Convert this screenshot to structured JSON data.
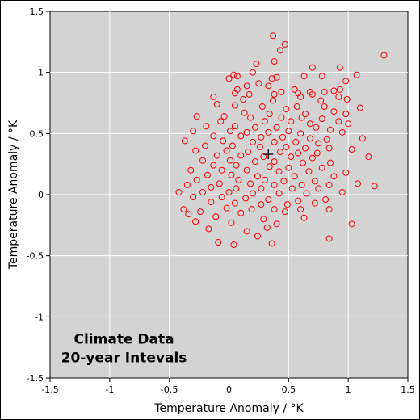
{
  "chart_data": {
    "type": "scatter",
    "title": "",
    "xlabel": "Temperature Anomaly / °K",
    "ylabel": "Temperature Anomaly / °K",
    "xlim": [
      -1.5,
      1.5
    ],
    "ylim": [
      -1.5,
      1.5
    ],
    "xticks": [
      -1.5,
      -1,
      -0.5,
      0,
      0.5,
      1,
      1.5
    ],
    "yticks": [
      -1.5,
      -1,
      -0.5,
      0,
      0.5,
      1,
      1.5
    ],
    "xtick_labels": [
      "-1.5",
      "-1",
      "-0.5",
      "0",
      "0.5",
      "1",
      "1.5"
    ],
    "ytick_labels": [
      "-1.5",
      "-1",
      "-0.5",
      "0",
      "0.5",
      "1",
      "1.5"
    ],
    "grid": true,
    "annotation": [
      "Climate Data",
      "20-year Intevals"
    ],
    "center_marker": {
      "x": 0.33,
      "y": 0.33,
      "symbol": "plus"
    },
    "colors": {
      "background": "#d3d3d3",
      "grid": "#ffffff",
      "marker": "#ff0000",
      "center": "#000000"
    },
    "series": [
      {
        "marker": "open-circle",
        "points": [
          [
            0.37,
            1.3
          ],
          [
            0.47,
            1.23
          ],
          [
            1.3,
            1.14
          ],
          [
            0.43,
            1.18
          ],
          [
            0.38,
            1.09
          ],
          [
            0.23,
            1.07
          ],
          [
            0.7,
            1.04
          ],
          [
            0.93,
            1.04
          ],
          [
            0.2,
            1.0
          ],
          [
            0.04,
            0.98
          ],
          [
            0.07,
            0.97
          ],
          [
            0.63,
            0.97
          ],
          [
            0.78,
            0.97
          ],
          [
            1.07,
            0.98
          ],
          [
            0.4,
            0.96
          ],
          [
            0.36,
            0.95
          ],
          [
            0.0,
            0.95
          ],
          [
            0.98,
            0.93
          ],
          [
            0.25,
            0.91
          ],
          [
            0.33,
            0.89
          ],
          [
            0.15,
            0.89
          ],
          [
            0.07,
            0.86
          ],
          [
            0.93,
            0.86
          ],
          [
            0.55,
            0.86
          ],
          [
            0.68,
            0.84
          ],
          [
            0.8,
            0.84
          ],
          [
            0.88,
            0.85
          ],
          [
            0.44,
            0.84
          ],
          [
            0.58,
            0.83
          ],
          [
            0.7,
            0.82
          ],
          [
            0.92,
            0.8
          ],
          [
            0.6,
            0.8
          ],
          [
            0.38,
            0.82
          ],
          [
            0.17,
            0.82
          ],
          [
            0.05,
            0.83
          ],
          [
            -0.13,
            0.8
          ],
          [
            0.12,
            0.78
          ],
          [
            0.37,
            0.77
          ],
          [
            0.77,
            0.77
          ],
          [
            0.99,
            0.78
          ],
          [
            -0.1,
            0.74
          ],
          [
            0.05,
            0.73
          ],
          [
            0.28,
            0.72
          ],
          [
            0.57,
            0.72
          ],
          [
            0.8,
            0.72
          ],
          [
            1.1,
            0.71
          ],
          [
            0.48,
            0.7
          ],
          [
            0.13,
            0.67
          ],
          [
            0.34,
            0.66
          ],
          [
            0.64,
            0.66
          ],
          [
            0.88,
            0.68
          ],
          [
            0.98,
            0.66
          ],
          [
            -0.27,
            0.64
          ],
          [
            -0.04,
            0.64
          ],
          [
            0.18,
            0.63
          ],
          [
            0.44,
            0.63
          ],
          [
            0.61,
            0.63
          ],
          [
            0.78,
            0.62
          ],
          [
            -0.07,
            0.6
          ],
          [
            0.3,
            0.6
          ],
          [
            0.52,
            0.6
          ],
          [
            0.68,
            0.58
          ],
          [
            0.92,
            0.6
          ],
          [
            1.0,
            0.58
          ],
          [
            -0.19,
            0.56
          ],
          [
            0.05,
            0.56
          ],
          [
            0.22,
            0.55
          ],
          [
            0.4,
            0.55
          ],
          [
            0.73,
            0.55
          ],
          [
            0.85,
            0.53
          ],
          [
            0.95,
            0.51
          ],
          [
            -0.3,
            0.52
          ],
          [
            0.01,
            0.52
          ],
          [
            0.15,
            0.51
          ],
          [
            0.33,
            0.51
          ],
          [
            0.5,
            0.52
          ],
          [
            0.6,
            0.5
          ],
          [
            -0.13,
            0.48
          ],
          [
            0.1,
            0.48
          ],
          [
            0.27,
            0.47
          ],
          [
            0.45,
            0.47
          ],
          [
            0.68,
            0.46
          ],
          [
            0.82,
            0.45
          ],
          [
            1.12,
            0.46
          ],
          [
            -0.37,
            0.44
          ],
          [
            -0.05,
            0.44
          ],
          [
            0.2,
            0.43
          ],
          [
            0.38,
            0.43
          ],
          [
            0.56,
            0.43
          ],
          [
            0.75,
            0.42
          ],
          [
            -0.2,
            0.4
          ],
          [
            0.03,
            0.4
          ],
          [
            0.26,
            0.39
          ],
          [
            0.48,
            0.39
          ],
          [
            0.64,
            0.38
          ],
          [
            0.84,
            0.38
          ],
          [
            1.03,
            0.37
          ],
          [
            -0.28,
            0.36
          ],
          [
            -0.02,
            0.36
          ],
          [
            0.16,
            0.35
          ],
          [
            0.43,
            0.35
          ],
          [
            0.58,
            0.34
          ],
          [
            0.74,
            0.34
          ],
          [
            -0.1,
            0.32
          ],
          [
            0.1,
            0.32
          ],
          [
            0.29,
            0.31
          ],
          [
            0.52,
            0.31
          ],
          [
            0.7,
            0.3
          ],
          [
            1.17,
            0.31
          ],
          [
            -0.22,
            0.28
          ],
          [
            0.01,
            0.28
          ],
          [
            0.22,
            0.27
          ],
          [
            0.38,
            0.27
          ],
          [
            0.62,
            0.26
          ],
          [
            0.85,
            0.26
          ],
          [
            -0.13,
            0.24
          ],
          [
            0.06,
            0.24
          ],
          [
            0.34,
            0.23
          ],
          [
            0.5,
            0.22
          ],
          [
            0.78,
            0.22
          ],
          [
            -0.32,
            0.2
          ],
          [
            -0.06,
            0.2
          ],
          [
            0.15,
            0.2
          ],
          [
            0.42,
            0.19
          ],
          [
            0.67,
            0.19
          ],
          [
            0.98,
            0.18
          ],
          [
            -0.18,
            0.16
          ],
          [
            0.02,
            0.16
          ],
          [
            0.24,
            0.15
          ],
          [
            0.55,
            0.15
          ],
          [
            0.88,
            0.15
          ],
          [
            -0.27,
            0.12
          ],
          [
            0.08,
            0.12
          ],
          [
            0.3,
            0.12
          ],
          [
            0.46,
            0.11
          ],
          [
            0.72,
            0.11
          ],
          [
            -0.08,
            0.09
          ],
          [
            0.18,
            0.09
          ],
          [
            0.38,
            0.08
          ],
          [
            0.61,
            0.08
          ],
          [
            0.84,
            0.08
          ],
          [
            1.08,
            0.09
          ],
          [
            -0.35,
            0.08
          ],
          [
            -0.15,
            0.06
          ],
          [
            0.06,
            0.05
          ],
          [
            0.27,
            0.05
          ],
          [
            0.53,
            0.05
          ],
          [
            0.75,
            0.05
          ],
          [
            1.22,
            0.07
          ],
          [
            -0.42,
            0.02
          ],
          [
            -0.22,
            0.02
          ],
          [
            0.0,
            0.02
          ],
          [
            0.2,
            0.01
          ],
          [
            0.42,
            0.01
          ],
          [
            0.65,
            0.01
          ],
          [
            0.95,
            0.02
          ],
          [
            -0.3,
            -0.02
          ],
          [
            -0.06,
            -0.02
          ],
          [
            0.14,
            -0.03
          ],
          [
            0.33,
            -0.04
          ],
          [
            0.58,
            -0.05
          ],
          [
            0.81,
            -0.04
          ],
          [
            -0.15,
            -0.06
          ],
          [
            0.05,
            -0.07
          ],
          [
            0.27,
            -0.08
          ],
          [
            0.49,
            -0.08
          ],
          [
            0.72,
            -0.07
          ],
          [
            -0.38,
            -0.12
          ],
          [
            -0.02,
            -0.11
          ],
          [
            0.19,
            -0.12
          ],
          [
            0.38,
            -0.12
          ],
          [
            0.6,
            -0.12
          ],
          [
            0.84,
            -0.12
          ],
          [
            -0.24,
            -0.14
          ],
          [
            0.1,
            -0.15
          ],
          [
            0.47,
            -0.14
          ],
          [
            -0.11,
            -0.18
          ],
          [
            0.29,
            -0.2
          ],
          [
            0.63,
            -0.19
          ],
          [
            -0.28,
            -0.22
          ],
          [
            0.02,
            -0.23
          ],
          [
            0.4,
            -0.24
          ],
          [
            1.03,
            -0.24
          ],
          [
            -0.17,
            -0.28
          ],
          [
            0.32,
            -0.27
          ],
          [
            0.15,
            -0.3
          ],
          [
            -0.09,
            -0.39
          ],
          [
            0.04,
            -0.41
          ],
          [
            0.24,
            -0.34
          ],
          [
            0.36,
            -0.4
          ],
          [
            0.84,
            -0.36
          ],
          [
            -0.34,
            -0.16
          ]
        ]
      }
    ]
  }
}
